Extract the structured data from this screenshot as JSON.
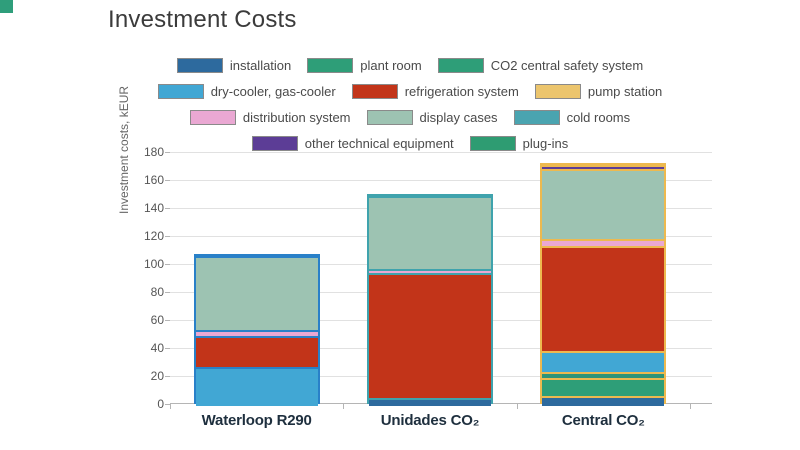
{
  "page": {
    "title": "Investment Costs",
    "corner_accent_color": "#2f9e7b"
  },
  "legend": {
    "rows": [
      [
        {
          "label": "installation",
          "color": "#2d6a9e"
        },
        {
          "label": "plant room",
          "color": "#2e9e78"
        },
        {
          "label": "CO2 central safety system",
          "color": "#2e9e78"
        }
      ],
      [
        {
          "label": "dry-cooler, gas-cooler",
          "color": "#41a7d4"
        },
        {
          "label": "refrigeration system",
          "color": "#c23419"
        },
        {
          "label": "pump station",
          "color": "#ecc56d"
        }
      ],
      [
        {
          "label": "distribution system",
          "color": "#eaa8d3"
        },
        {
          "label": "display cases",
          "color": "#9dc3b2"
        },
        {
          "label": "cold rooms",
          "color": "#4aa4b0"
        }
      ],
      [
        {
          "label": "other technical equipment",
          "color": "#5c3d96"
        },
        {
          "label": "plug-ins",
          "color": "#2e9c72"
        }
      ]
    ]
  },
  "chart_data": {
    "type": "bar",
    "stacked": true,
    "title": "Investment Costs",
    "ylabel": "Investment costs, kEUR",
    "ylim": [
      0,
      180
    ],
    "ytick_step": 20,
    "grid": true,
    "legend_position": "top",
    "categories": [
      "Waterloop R290",
      "Unidades CO₂",
      "Central CO₂"
    ],
    "bar_border_colors": [
      "#2980c8",
      "#3fa3ad",
      "#edb94f"
    ],
    "series": [
      {
        "name": "installation",
        "color": "#2d6a9e",
        "values": [
          0,
          6,
          7
        ]
      },
      {
        "name": "plant room",
        "color": "#2e9e78",
        "values": [
          0,
          0,
          13
        ]
      },
      {
        "name": "CO2 central safety system",
        "color": "#2e9478",
        "values": [
          0,
          0,
          4
        ]
      },
      {
        "name": "dry-cooler, gas-cooler",
        "color": "#41a7d4",
        "values": [
          28,
          0,
          15
        ]
      },
      {
        "name": "refrigeration system",
        "color": "#c23419",
        "values": [
          22,
          89,
          75
        ]
      },
      {
        "name": "pump station",
        "color": "#ecc56d",
        "values": [
          0,
          0,
          0
        ]
      },
      {
        "name": "distribution system",
        "color": "#eaa8d3",
        "values": [
          4,
          3,
          5
        ]
      },
      {
        "name": "display cases",
        "color": "#9dc3b2",
        "values": [
          53,
          52,
          50
        ]
      },
      {
        "name": "cold rooms",
        "color": "#4aa4b0",
        "values": [
          0,
          0,
          0
        ]
      },
      {
        "name": "other technical equipment",
        "color": "#5c3d96",
        "values": [
          0,
          0,
          3.5
        ]
      },
      {
        "name": "plug-ins",
        "color": "#2e9c72",
        "values": [
          0,
          0,
          0
        ]
      }
    ],
    "totals": [
      107,
      150,
      172.5
    ]
  }
}
